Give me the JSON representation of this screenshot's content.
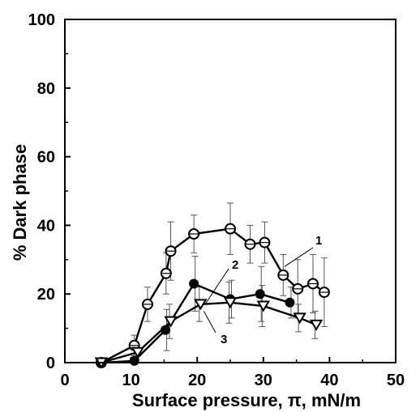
{
  "chart_data": {
    "type": "line",
    "xlabel": "Surface pressure, π, mN/m",
    "ylabel": "% Dark phase",
    "xlim": [
      0,
      50
    ],
    "ylim": [
      0,
      100
    ],
    "xticks": [
      "0",
      "10",
      "20",
      "30",
      "40",
      "50"
    ],
    "yticks": [
      "0",
      "20",
      "40",
      "60",
      "80",
      "100"
    ],
    "grid": false,
    "series": [
      {
        "name": "1",
        "marker": "open-circle",
        "x": [
          5.5,
          10.5,
          12.5,
          15.3,
          16,
          19.5,
          25,
          28,
          30.2,
          33,
          35.2,
          37.5,
          39.2
        ],
        "y": [
          0,
          5,
          17,
          26,
          32.5,
          37.5,
          39,
          34.5,
          35,
          25.5,
          21.5,
          23,
          20.5
        ],
        "err": [
          0,
          3,
          5,
          6,
          8.5,
          5.5,
          7.5,
          5.5,
          6,
          6,
          8.5,
          8.5,
          10
        ]
      },
      {
        "name": "2",
        "marker": "filled-circle",
        "x": [
          5.5,
          10.5,
          15.2,
          19.5,
          25,
          29.5,
          34
        ],
        "y": [
          0,
          0.5,
          9.5,
          23,
          18.5,
          20,
          17.5
        ],
        "err": [
          0,
          0.5,
          6,
          8,
          5.5,
          8,
          4.5
        ]
      },
      {
        "name": "3",
        "marker": "open-triangle",
        "x": [
          5.5,
          11,
          16,
          20.5,
          25,
          30,
          35.5,
          38
        ],
        "y": [
          0,
          3,
          12,
          17,
          17.5,
          16.5,
          13,
          11
        ],
        "err": [
          0,
          2,
          5,
          5,
          6,
          6,
          4,
          4
        ]
      }
    ]
  }
}
